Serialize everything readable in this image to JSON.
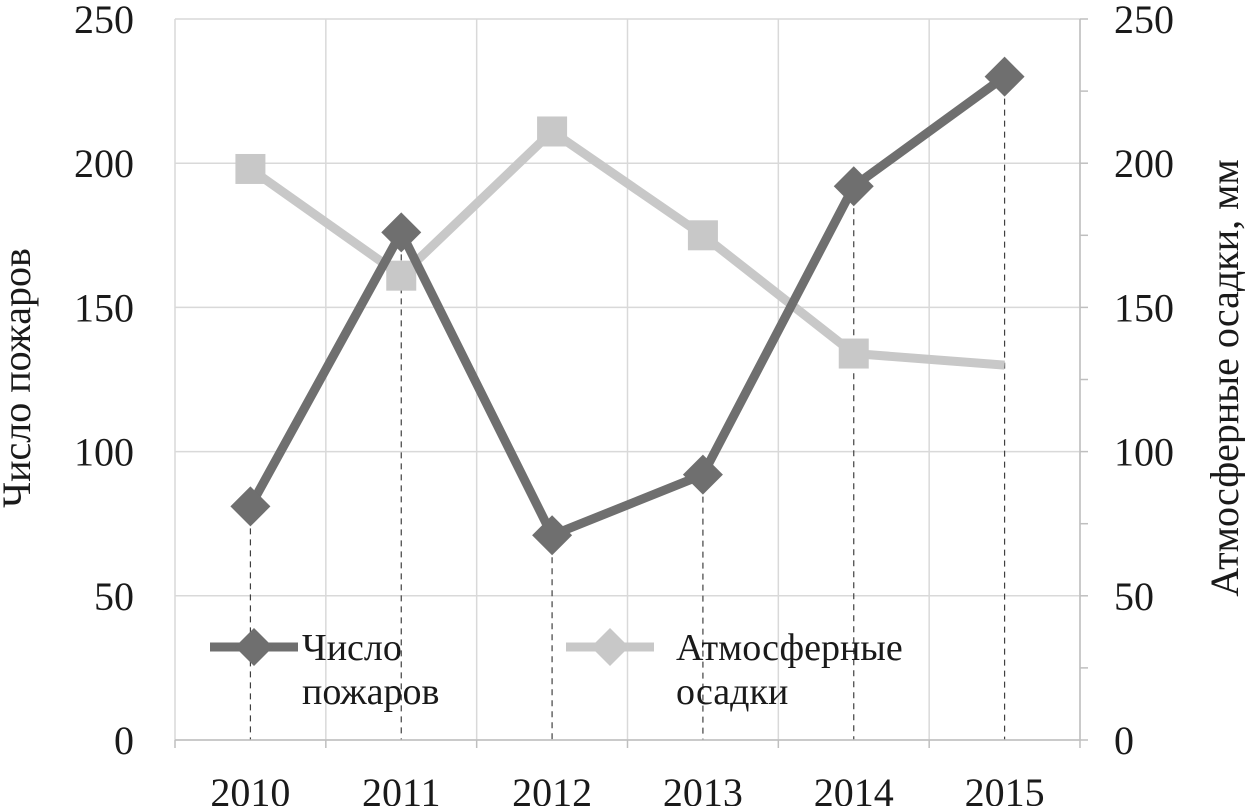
{
  "chart_data": {
    "type": "line",
    "categories": [
      "2010",
      "2011",
      "2012",
      "2013",
      "2014",
      "2015"
    ],
    "series": [
      {
        "name": "Число пожаров",
        "legend_lines": [
          "Число",
          "пожаров"
        ],
        "axis": "left",
        "marker": "diamond",
        "color": "#6f6f6f",
        "values": [
          81,
          176,
          71,
          92,
          192,
          230
        ]
      },
      {
        "name": "Атмосферные осадки",
        "legend_lines": [
          "Атмосферные",
          "осадки"
        ],
        "axis": "right",
        "marker": "square",
        "color": "#c8c8c8",
        "values": [
          198,
          161,
          211,
          175,
          134,
          130
        ]
      }
    ],
    "ylabel": "Число пожаров",
    "y2label": "Атмосферные осадки, мм",
    "ylim": [
      0,
      250
    ],
    "y2lim": [
      0,
      250
    ],
    "yticks": [
      "0",
      "50",
      "100",
      "150",
      "200",
      "250"
    ],
    "y2ticks": [
      "0",
      "50",
      "100",
      "150",
      "200",
      "250"
    ],
    "grid": true,
    "legend_position": "bottom-inside",
    "drop_lines": true
  }
}
